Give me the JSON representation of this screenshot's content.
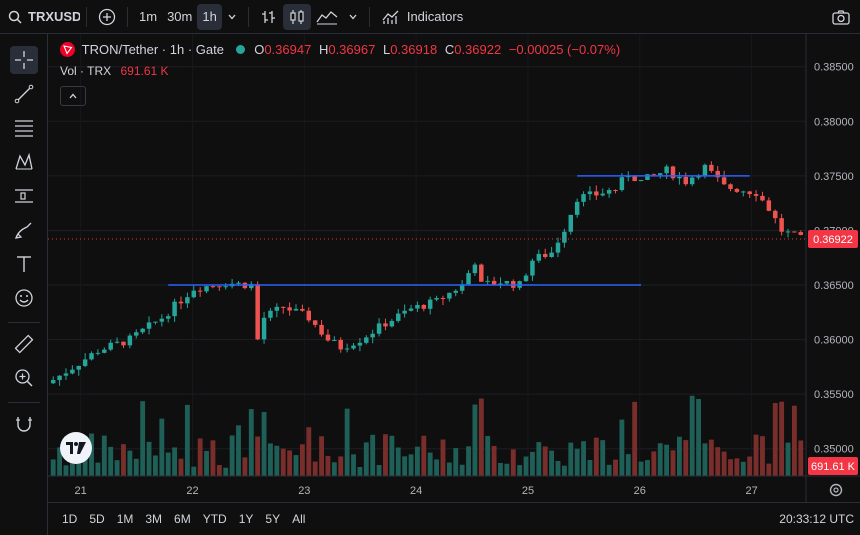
{
  "toolbar": {
    "symbol": "TRXUSDT",
    "intervals": [
      "1m",
      "30m",
      "1h"
    ],
    "active_interval": "1h",
    "indicators_label": "Indicators"
  },
  "legend": {
    "name": "TRON/Tether · 1h · Gate",
    "o_label": "O",
    "o": "0.36947",
    "h_label": "H",
    "h": "0.36967",
    "l_label": "L",
    "l": "0.36918",
    "c_label": "C",
    "c": "0.36922",
    "change": "−0.00025 (−0.07%)",
    "vol_label": "Vol · TRX",
    "vol_value": "691.61 K"
  },
  "bottombar": {
    "ranges": [
      "1D",
      "5D",
      "1M",
      "3M",
      "6M",
      "YTD",
      "1Y",
      "5Y",
      "All"
    ],
    "clock": "20:33:12 UTC"
  },
  "colors": {
    "up": "#26a69a",
    "down": "#ef5350",
    "hline": "#2962ff",
    "price_badge": "#f23645"
  },
  "chart_data": {
    "type": "candlestick",
    "y_ticks": [
      "0.38500",
      "0.38000",
      "0.37500",
      "0.37000",
      "0.36500",
      "0.36000",
      "0.35500",
      "0.35000"
    ],
    "ylim": [
      0.3475,
      0.388
    ],
    "x_ticks": [
      "21",
      "22",
      "23",
      "24",
      "25",
      "26",
      "27"
    ],
    "last_price": "0.36922",
    "volume_badge": "691.61 K",
    "close_path": [
      [
        0,
        0.3563
      ],
      [
        7,
        0.359
      ],
      [
        12,
        0.36
      ],
      [
        17,
        0.362
      ],
      [
        22,
        0.3647
      ],
      [
        27,
        0.3652
      ],
      [
        31,
        0.365
      ],
      [
        32,
        0.36
      ],
      [
        33,
        0.362
      ],
      [
        36,
        0.363
      ],
      [
        40,
        0.362
      ],
      [
        43,
        0.36
      ],
      [
        45,
        0.3593
      ],
      [
        48,
        0.36
      ],
      [
        52,
        0.3615
      ],
      [
        56,
        0.3628
      ],
      [
        60,
        0.3635
      ],
      [
        64,
        0.365
      ],
      [
        66,
        0.3672
      ],
      [
        67,
        0.365
      ],
      [
        70,
        0.3653
      ],
      [
        73,
        0.365
      ],
      [
        75,
        0.3673
      ],
      [
        78,
        0.368
      ],
      [
        80,
        0.3702
      ],
      [
        82,
        0.373
      ],
      [
        85,
        0.3733
      ],
      [
        88,
        0.3738
      ],
      [
        90,
        0.3752
      ],
      [
        92,
        0.3745
      ],
      [
        94,
        0.375
      ],
      [
        96,
        0.3755
      ],
      [
        99,
        0.3745
      ],
      [
        102,
        0.3758
      ],
      [
        105,
        0.374
      ],
      [
        108,
        0.3737
      ],
      [
        110,
        0.3735
      ],
      [
        112,
        0.372
      ],
      [
        114,
        0.37
      ],
      [
        117,
        0.3692
      ]
    ],
    "horizontal_lines": [
      {
        "price": 0.375,
        "x_start": 82,
        "x_end": 109
      },
      {
        "price": 0.365,
        "x_start": 18,
        "x_end": 92
      }
    ]
  }
}
